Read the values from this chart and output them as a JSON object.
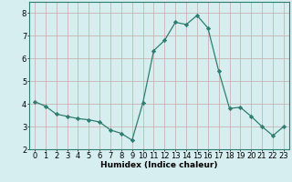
{
  "x": [
    0,
    1,
    2,
    3,
    4,
    5,
    6,
    7,
    8,
    9,
    10,
    11,
    12,
    13,
    14,
    15,
    16,
    17,
    18,
    19,
    20,
    21,
    22,
    23
  ],
  "y": [
    4.1,
    3.9,
    3.55,
    3.45,
    3.35,
    3.3,
    3.2,
    2.85,
    2.7,
    2.4,
    4.05,
    6.35,
    6.8,
    7.6,
    7.5,
    7.9,
    7.35,
    5.45,
    3.8,
    3.85,
    3.45,
    3.0,
    2.6,
    3.0
  ],
  "line_color": "#2e7d6e",
  "marker": "D",
  "marker_size": 2.2,
  "bg_color": "#d6eef0",
  "grid_color": "#c8a8a8",
  "xlabel": "Humidex (Indice chaleur)",
  "ylim": [
    2,
    8.5
  ],
  "xlim": [
    -0.5,
    23.5
  ],
  "yticks": [
    2,
    3,
    4,
    5,
    6,
    7,
    8
  ],
  "xticks": [
    0,
    1,
    2,
    3,
    4,
    5,
    6,
    7,
    8,
    9,
    10,
    11,
    12,
    13,
    14,
    15,
    16,
    17,
    18,
    19,
    20,
    21,
    22,
    23
  ],
  "xlabel_fontsize": 6.5,
  "tick_fontsize": 6.0
}
